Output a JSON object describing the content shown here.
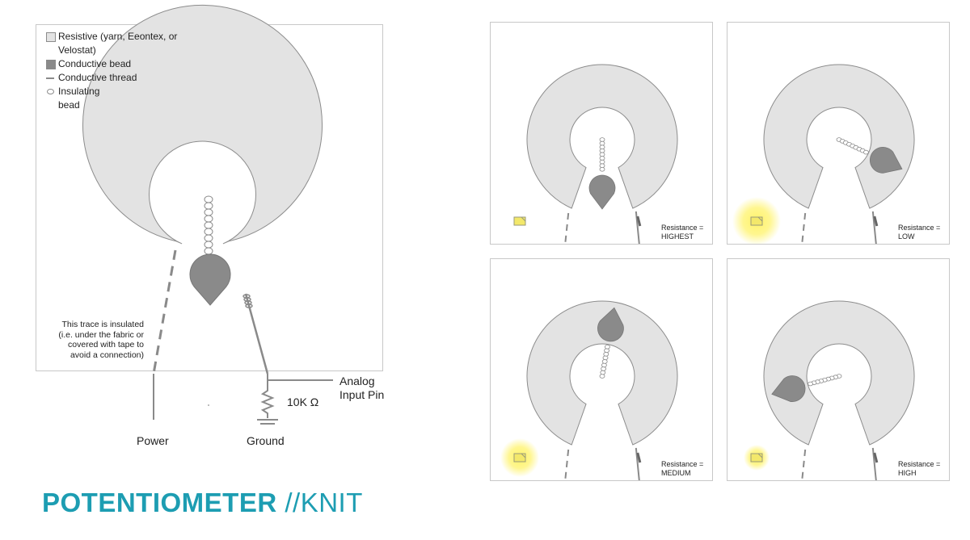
{
  "legend": {
    "resistive": "Resistive (yarn, Eeontex, or Velostat)",
    "conductive_bead": "Conductive bead",
    "conductive_thread": "Conductive thread",
    "insulating_bead_line1": "Insulating",
    "insulating_bead_line2": "bead"
  },
  "note": {
    "line1": "This trace is insulated",
    "line2": "(i.e. under the fabric or",
    "line3": "covered with tape to",
    "line4": "avoid a connection)"
  },
  "circuit": {
    "analog_line1": "Analog",
    "analog_line2": "Input Pin",
    "resistor": "10K Ω",
    "power": "Power",
    "ground": "Ground"
  },
  "states": [
    {
      "line1": "Resistance =",
      "line2": "HIGHEST",
      "led_glow": false
    },
    {
      "line1": "Resistance =",
      "line2": "LOW",
      "led_glow": true
    },
    {
      "line1": "Resistance =",
      "line2": "MEDIUM",
      "led_glow": true
    },
    {
      "line1": "Resistance =",
      "line2": "HIGH",
      "led_glow": true
    }
  ],
  "title": {
    "bold": "POTENTIOMETER",
    "light": " //KNIT"
  },
  "colors": {
    "accent": "#1d9db2",
    "ring_fill": "#e3e3e3",
    "ring_stroke": "#8c8c8c",
    "bead": "#8a8a8a",
    "led": "#f3e86a"
  }
}
